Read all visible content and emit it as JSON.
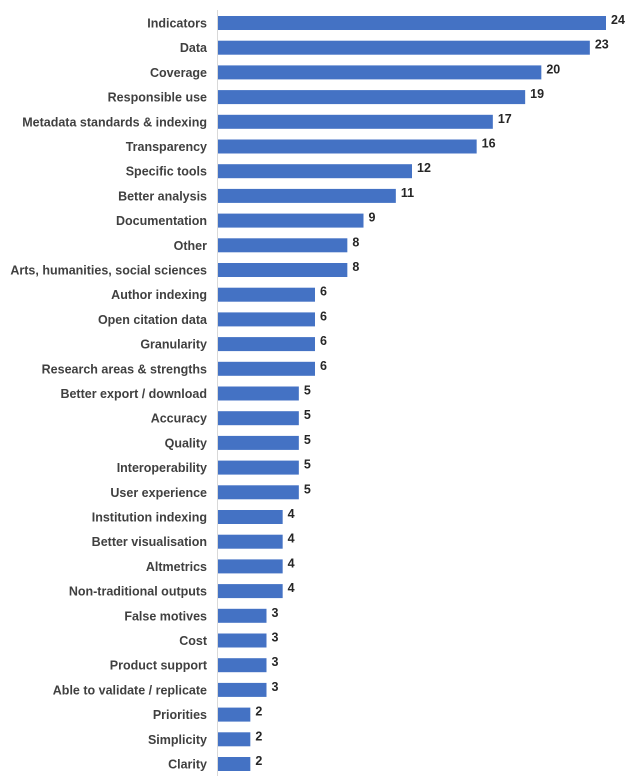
{
  "chart_data": {
    "type": "bar",
    "orientation": "horizontal",
    "title": "",
    "xlabel": "",
    "ylabel": "",
    "xlim": [
      0,
      24
    ],
    "grid": false,
    "bar_color": "#4472C4",
    "categories": [
      "Indicators",
      "Data",
      "Coverage",
      "Responsible use",
      "Metadata standards & indexing",
      "Transparency",
      "Specific tools",
      "Better analysis",
      "Documentation",
      "Other",
      "Arts, humanities, social sciences",
      "Author indexing",
      "Open citation data",
      "Granularity",
      "Research areas & strengths",
      "Better export / download",
      "Accuracy",
      "Quality",
      "Interoperability",
      "User experience",
      "Institution indexing",
      "Better visualisation",
      "Altmetrics",
      "Non-traditional outputs",
      "False motives",
      "Cost",
      "Product support",
      "Able to validate / replicate",
      "Priorities",
      "Simplicity",
      "Clarity"
    ],
    "values": [
      24,
      23,
      20,
      19,
      17,
      16,
      12,
      11,
      9,
      8,
      8,
      6,
      6,
      6,
      6,
      5,
      5,
      5,
      5,
      5,
      4,
      4,
      4,
      4,
      3,
      3,
      3,
      3,
      2,
      2,
      2
    ]
  }
}
